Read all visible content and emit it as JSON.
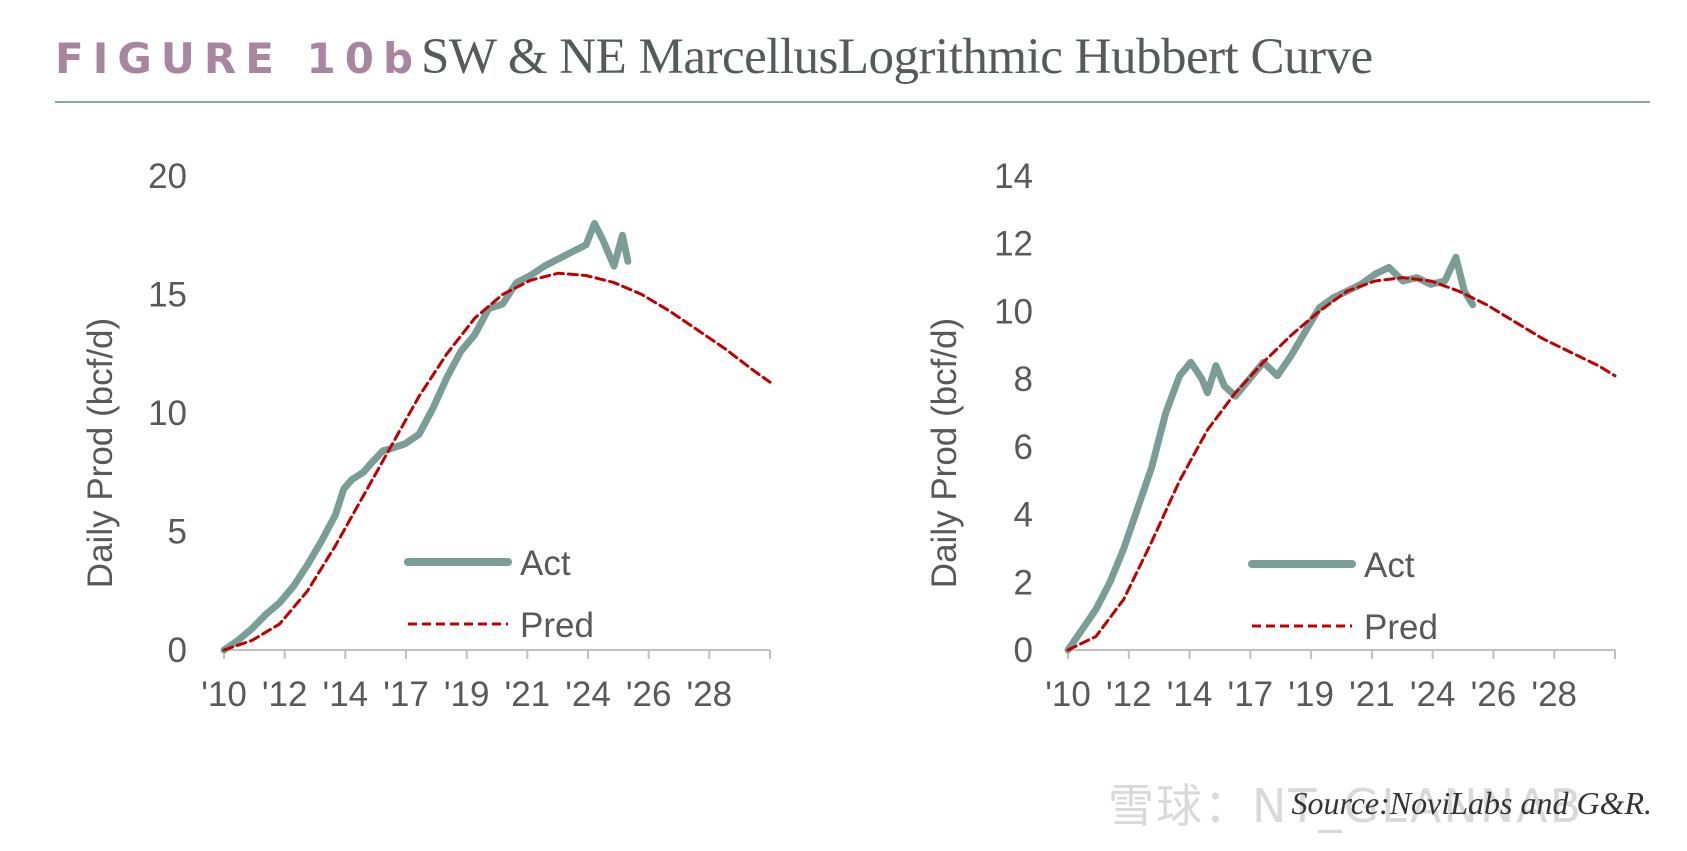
{
  "header": {
    "figure_label": "FIGURE 10b",
    "title": "SW & NE MarcellusLogrithmic Hubbert Curve"
  },
  "footer": {
    "source": "Source:NoviLabs and G&R.",
    "watermark": "雪球：NT_GLANNAB"
  },
  "colors": {
    "act": "#7a9e97",
    "pred": "#c00000",
    "axis": "#bfbfbf",
    "tick_text": "#595959",
    "header_label": "#a8869f",
    "rule": "#8aa6a4"
  },
  "chart_data": [
    {
      "type": "line",
      "title": "",
      "xlabel": "",
      "ylabel": "Daily Prod (bcf/d)",
      "xlim": [
        2010,
        2029.6
      ],
      "ylim": [
        0,
        20
      ],
      "yticks": [
        0,
        5,
        10,
        15,
        20
      ],
      "xtick_labels": [
        "'10",
        "'12",
        "'14",
        "'17",
        "'19",
        "'21",
        "'24",
        "'26",
        "'28"
      ],
      "legend": "inside-bottom",
      "series": [
        {
          "name": "Act",
          "style": "solid",
          "x": [
            2010.0,
            2010.5,
            2011.0,
            2011.5,
            2012.0,
            2012.5,
            2013.0,
            2013.5,
            2014.0,
            2014.3,
            2014.6,
            2015.0,
            2015.3,
            2015.7,
            2016.0,
            2016.5,
            2017.0,
            2017.5,
            2018.0,
            2018.5,
            2019.0,
            2019.5,
            2020.0,
            2020.5,
            2021.0,
            2021.5,
            2022.0,
            2022.5,
            2023.0,
            2023.3,
            2023.6,
            2024.0,
            2024.3,
            2024.5
          ],
          "y": [
            0.0,
            0.4,
            0.9,
            1.5,
            2.0,
            2.7,
            3.6,
            4.6,
            5.7,
            6.8,
            7.2,
            7.5,
            7.9,
            8.4,
            8.5,
            8.7,
            9.1,
            10.2,
            11.5,
            12.6,
            13.3,
            14.4,
            14.6,
            15.5,
            15.8,
            16.2,
            16.5,
            16.8,
            17.1,
            18.0,
            17.3,
            16.2,
            17.5,
            16.4
          ]
        },
        {
          "name": "Pred",
          "style": "dashed",
          "x": [
            2010.0,
            2011.0,
            2012.0,
            2013.0,
            2014.0,
            2015.0,
            2016.0,
            2017.0,
            2018.0,
            2019.0,
            2020.0,
            2021.0,
            2022.0,
            2023.0,
            2024.0,
            2025.0,
            2026.0,
            2027.0,
            2028.0,
            2029.0,
            2029.6
          ],
          "y": [
            0.0,
            0.4,
            1.1,
            2.5,
            4.4,
            6.5,
            8.6,
            10.7,
            12.5,
            14.0,
            15.0,
            15.6,
            15.9,
            15.8,
            15.5,
            15.0,
            14.3,
            13.5,
            12.7,
            11.8,
            11.3
          ]
        }
      ]
    },
    {
      "type": "line",
      "title": "",
      "xlabel": "",
      "ylabel": "Daily Prod (bcf/d)",
      "xlim": [
        2010,
        2029.6
      ],
      "ylim": [
        0,
        14
      ],
      "yticks": [
        0,
        2,
        4,
        6,
        8,
        10,
        12,
        14
      ],
      "xtick_labels": [
        "'10",
        "'12",
        "'14",
        "'17",
        "'19",
        "'21",
        "'24",
        "'26",
        "'28"
      ],
      "legend": "inside-bottom",
      "series": [
        {
          "name": "Act",
          "style": "solid",
          "x": [
            2010.0,
            2010.5,
            2011.0,
            2011.5,
            2012.0,
            2012.5,
            2013.0,
            2013.5,
            2014.0,
            2014.4,
            2014.8,
            2015.0,
            2015.3,
            2015.6,
            2016.0,
            2016.5,
            2017.0,
            2017.5,
            2018.0,
            2018.5,
            2019.0,
            2019.5,
            2020.0,
            2020.5,
            2021.0,
            2021.5,
            2022.0,
            2022.5,
            2023.0,
            2023.5,
            2023.9,
            2024.2,
            2024.5
          ],
          "y": [
            0.0,
            0.6,
            1.2,
            2.0,
            3.0,
            4.2,
            5.4,
            7.0,
            8.1,
            8.5,
            8.0,
            7.6,
            8.4,
            7.8,
            7.5,
            8.0,
            8.5,
            8.1,
            8.7,
            9.4,
            10.1,
            10.4,
            10.6,
            10.8,
            11.1,
            11.3,
            10.9,
            11.0,
            10.8,
            10.9,
            11.6,
            10.6,
            10.2
          ]
        },
        {
          "name": "Pred",
          "style": "dashed",
          "x": [
            2010.0,
            2011.0,
            2012.0,
            2013.0,
            2014.0,
            2015.0,
            2016.0,
            2017.0,
            2018.0,
            2019.0,
            2020.0,
            2021.0,
            2022.0,
            2023.0,
            2024.0,
            2025.0,
            2026.0,
            2027.0,
            2028.0,
            2029.0,
            2029.6
          ],
          "y": [
            0.0,
            0.4,
            1.5,
            3.2,
            5.0,
            6.5,
            7.6,
            8.5,
            9.3,
            10.0,
            10.6,
            10.9,
            11.0,
            10.9,
            10.6,
            10.2,
            9.7,
            9.2,
            8.8,
            8.4,
            8.1
          ]
        }
      ]
    }
  ]
}
